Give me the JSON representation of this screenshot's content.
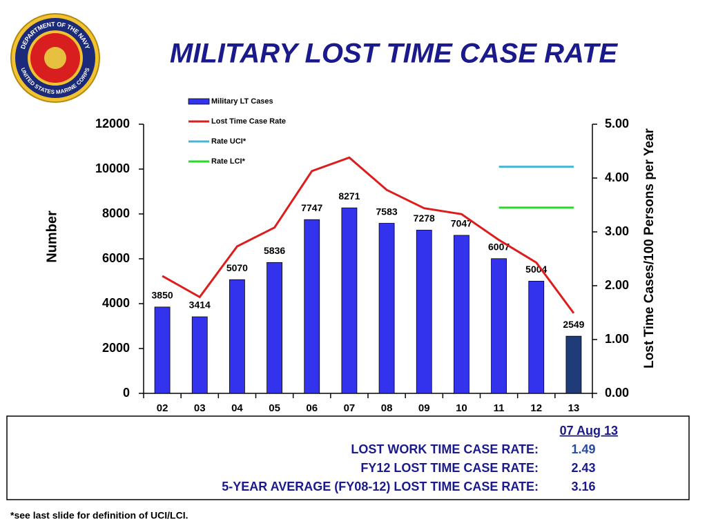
{
  "logo": {
    "top": "DEPARTMENT OF THE NAVY",
    "bottom": "UNITED STATES MARINE CORPS"
  },
  "chart_data": {
    "type": "bar",
    "title": "MILITARY LOST TIME CASE RATE",
    "categories": [
      "02",
      "03",
      "04",
      "05",
      "06",
      "07",
      "08",
      "09",
      "10",
      "11",
      "12",
      "13"
    ],
    "y_label": "Number",
    "y2_label": "Lost Time Cases/100 Persons per Year",
    "ylim": [
      0,
      12000
    ],
    "yticks": [
      0,
      2000,
      4000,
      6000,
      8000,
      10000,
      12000
    ],
    "y2lim": [
      0,
      5
    ],
    "y2ticks": [
      {
        "value": 0,
        "label": "0.00"
      },
      {
        "value": 1,
        "label": "1.00"
      },
      {
        "value": 2,
        "label": "2.00"
      },
      {
        "value": 3,
        "label": "3.00"
      },
      {
        "value": 4,
        "label": "4.00"
      },
      {
        "value": 5,
        "label": "5.00"
      }
    ],
    "legend": "top-left",
    "series": [
      {
        "name": "Military LT Cases",
        "type": "bar",
        "color": "#3333ee",
        "colors": [
          "#3333ee",
          "#3333ee",
          "#3333ee",
          "#3333ee",
          "#3333ee",
          "#3333ee",
          "#3333ee",
          "#3333ee",
          "#3333ee",
          "#3333ee",
          "#3333ee",
          "#1f3c78"
        ],
        "values": [
          3850,
          3414,
          5070,
          5836,
          7747,
          8271,
          7583,
          7278,
          7047,
          6007,
          5004,
          2549
        ]
      },
      {
        "name": "Lost Time Case Rate",
        "type": "line",
        "axis": "y2",
        "color": "#dd1c1c",
        "values": [
          2.18,
          1.79,
          2.73,
          3.08,
          4.13,
          4.38,
          3.78,
          3.44,
          3.33,
          2.85,
          2.43,
          1.49
        ]
      },
      {
        "name": "Rate UCI*",
        "type": "line",
        "axis": "y2",
        "color": "#4ab4d4",
        "values": [
          null,
          null,
          null,
          null,
          null,
          null,
          null,
          null,
          null,
          4.21,
          4.21,
          4.21
        ]
      },
      {
        "name": "Rate LCI*",
        "type": "line",
        "axis": "y2",
        "color": "#22dd22",
        "values": [
          null,
          null,
          null,
          null,
          null,
          null,
          null,
          null,
          null,
          3.45,
          3.45,
          3.45
        ]
      }
    ]
  },
  "summary": {
    "date": "07 Aug 13",
    "rows": [
      {
        "label": "LOST WORK TIME CASE RATE:",
        "value": 1.49
      },
      {
        "label": "FY12 LOST TIME CASE RATE:",
        "value": 2.43
      },
      {
        "label": "5-YEAR AVERAGE (FY08-12) LOST TIME CASE RATE:",
        "value": 3.16
      }
    ]
  },
  "footnote": "*see last slide for definition of UCI/LCI."
}
